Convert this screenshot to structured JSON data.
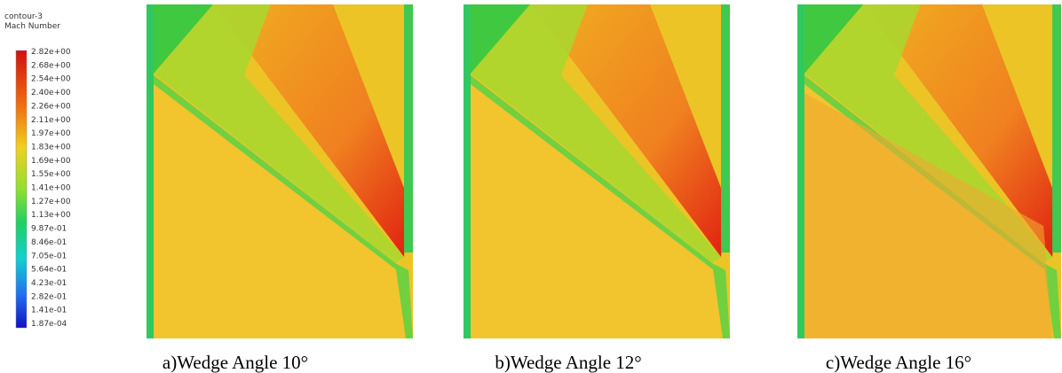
{
  "legend": {
    "title": "contour-3",
    "subtitle": "Mach Number",
    "labels": [
      "2.82e+00",
      "2.68e+00",
      "2.54e+00",
      "2.40e+00",
      "2.26e+00",
      "2.11e+00",
      "1.97e+00",
      "1.83e+00",
      "1.69e+00",
      "1.55e+00",
      "1.41e+00",
      "1.27e+00",
      "1.13e+00",
      "9.87e-01",
      "8.46e-01",
      "7.05e-01",
      "5.64e-01",
      "4.23e-01",
      "2.82e-01",
      "1.41e-01",
      "1.87e-04"
    ]
  },
  "panels": [
    {
      "caption": "a)Wedge Angle 10°"
    },
    {
      "caption": "b)Wedge Angle 12°"
    },
    {
      "caption": "c)Wedge Angle 16°"
    }
  ]
}
